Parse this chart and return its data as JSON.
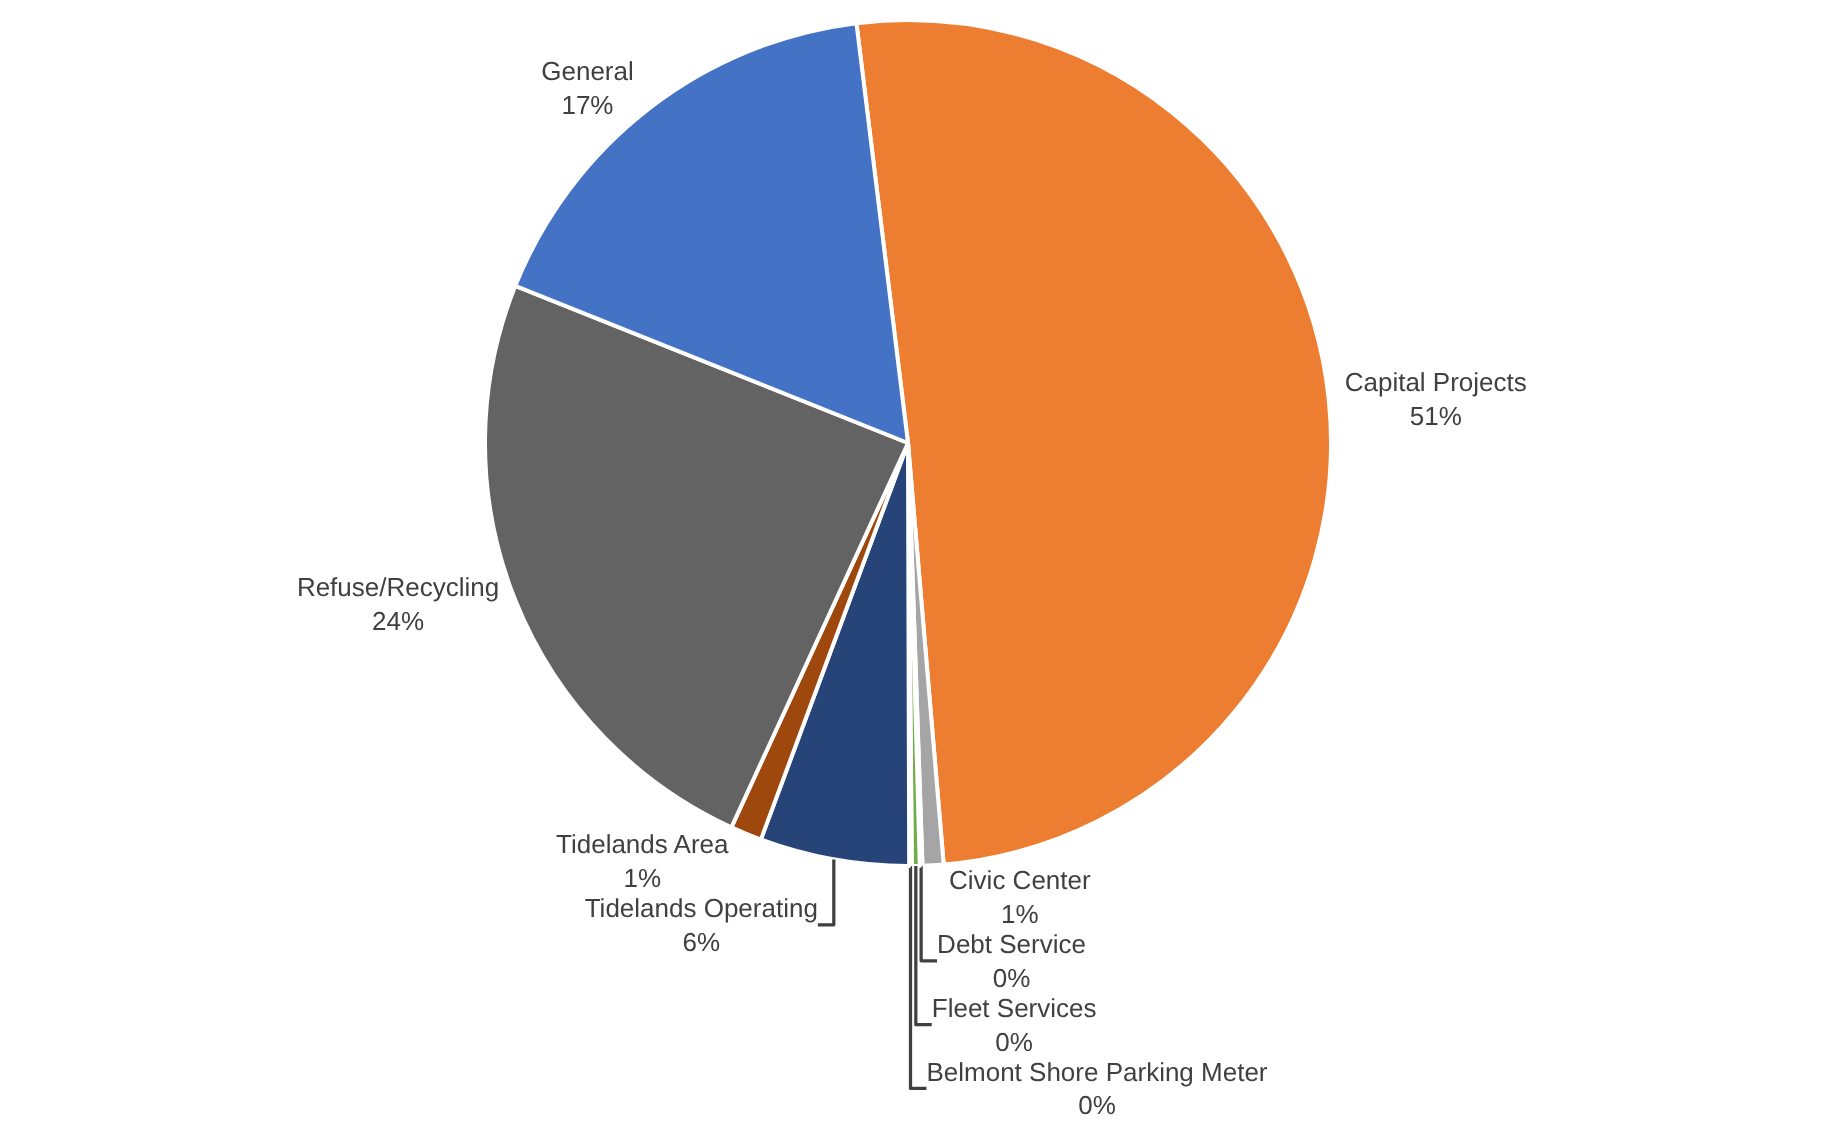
{
  "chart_data": {
    "type": "pie",
    "categories": [
      "Capital Projects",
      "Civic Center",
      "Debt Service",
      "Fleet Services",
      "Belmont Shore Parking Meter",
      "Tidelands Operating",
      "Tidelands Area",
      "Refuse/Recycling",
      "General"
    ],
    "values": [
      50.6,
      0.8,
      0.1,
      0.3,
      0.1,
      5.7,
      1.2,
      24.2,
      17.0
    ],
    "value_labels": [
      "51%",
      "1%",
      "0%",
      "0%",
      "0%",
      "6%",
      "1%",
      "24%",
      "17%"
    ],
    "colors": [
      "#ed7d31",
      "#a5a5a5",
      "#ffc000",
      "#70ad47",
      "#5b9bd5",
      "#264478",
      "#9e480e",
      "#636363",
      "#4472c4"
    ],
    "legend": false
  }
}
